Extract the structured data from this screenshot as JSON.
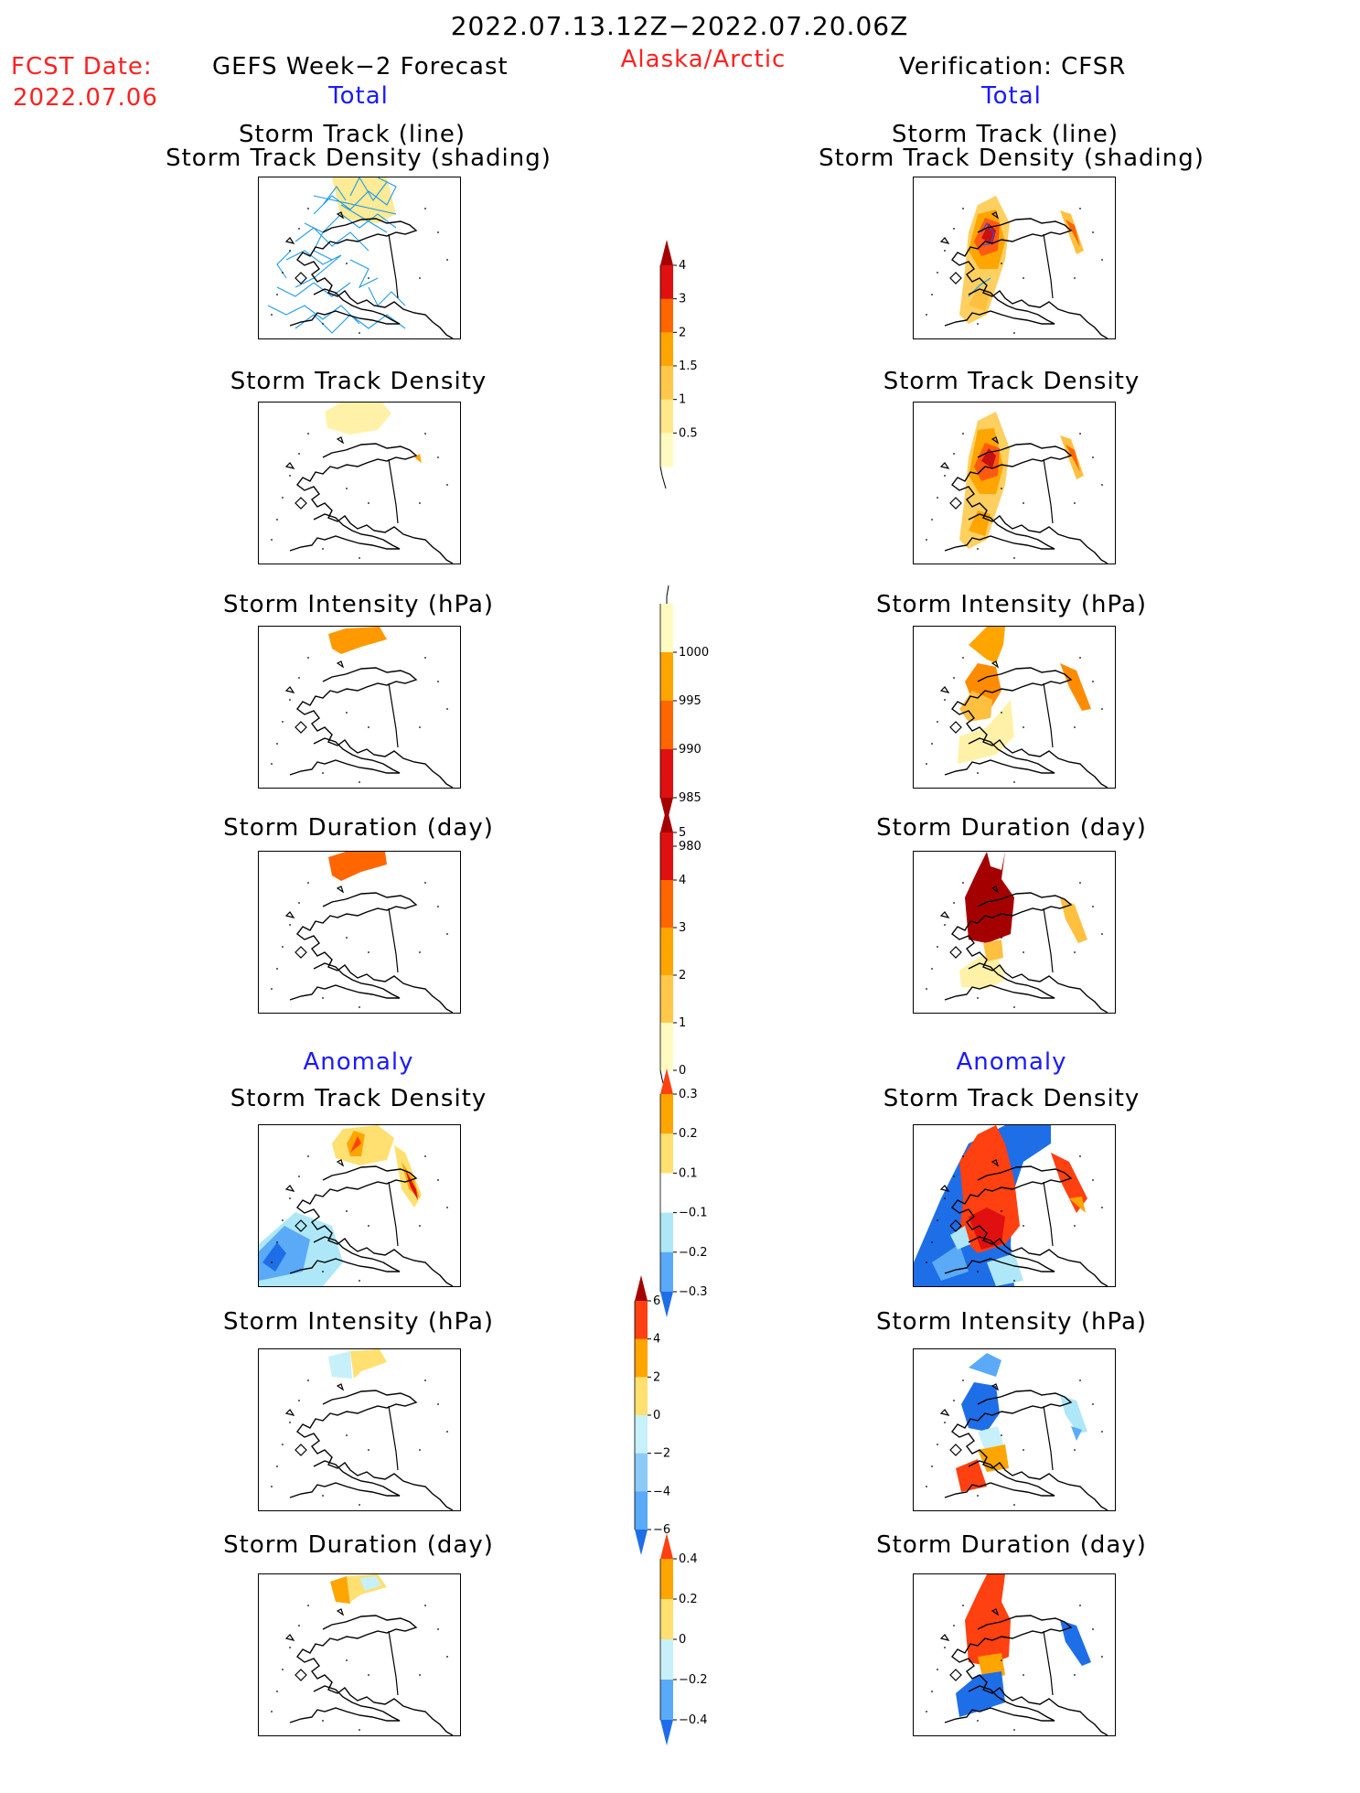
{
  "header": {
    "date_range": "2022.07.13.12Z−2022.07.20.06Z",
    "fcst_label": "FCST Date:",
    "fcst_date": "2022.07.06",
    "left_title": "GEFS Week−2 Forecast",
    "region": "Alaska/Arctic",
    "right_title": "Verification: CFSR",
    "left_total": "Total",
    "right_total": "Total",
    "left_anomaly": "Anomaly",
    "right_anomaly": "Anomaly"
  },
  "panels": {
    "track_line": "Storm Track (line)",
    "track_shading": "Storm Track Density (shading)",
    "density": "Storm Track Density",
    "intensity": "Storm Intensity (hPa)",
    "duration": "Storm Duration (day)"
  },
  "colorbars": {
    "density": {
      "ticks": [
        "4",
        "3",
        "2",
        "1.5",
        "1",
        "0.5"
      ],
      "colors": [
        "#a50000",
        "#e01010",
        "#ff6600",
        "#ffa500",
        "#ffc84a",
        "#ffe88a",
        "#fffbc0"
      ]
    },
    "intensity": {
      "ticks": [
        "1000",
        "995",
        "990",
        "985",
        "980"
      ],
      "colors": [
        "#fffbc0",
        "#ffa500",
        "#ff6600",
        "#e01010",
        "#a50000"
      ]
    },
    "duration": {
      "ticks": [
        "5",
        "4",
        "3",
        "2",
        "1",
        "0"
      ],
      "colors": [
        "#a50000",
        "#e01010",
        "#ff6600",
        "#ffa500",
        "#ffc84a",
        "#fffbc0"
      ]
    },
    "density_anom": {
      "ticks": [
        "0.3",
        "0.2",
        "0.1",
        "−0.1",
        "−0.2",
        "−0.3"
      ],
      "colors": [
        "#ff4010",
        "#ffa500",
        "#ffe070",
        "#ffffff",
        "#aee8f8",
        "#5aaaf8",
        "#1e6ee8"
      ]
    },
    "intensity_anom": {
      "ticks": [
        "6",
        "4",
        "2",
        "0",
        "−2",
        "−4",
        "−6"
      ],
      "colors": [
        "#a50000",
        "#ff4010",
        "#ffa500",
        "#ffe070",
        "#c8f0fa",
        "#8ccaf8",
        "#5aaaf8",
        "#1e6ee8"
      ]
    },
    "duration_anom": {
      "ticks": [
        "0.4",
        "0.2",
        "0",
        "−0.2",
        "−0.4"
      ],
      "colors": [
        "#ff4010",
        "#ffa500",
        "#ffe070",
        "#c8f0fa",
        "#5aaaf8",
        "#1e6ee8"
      ]
    }
  }
}
